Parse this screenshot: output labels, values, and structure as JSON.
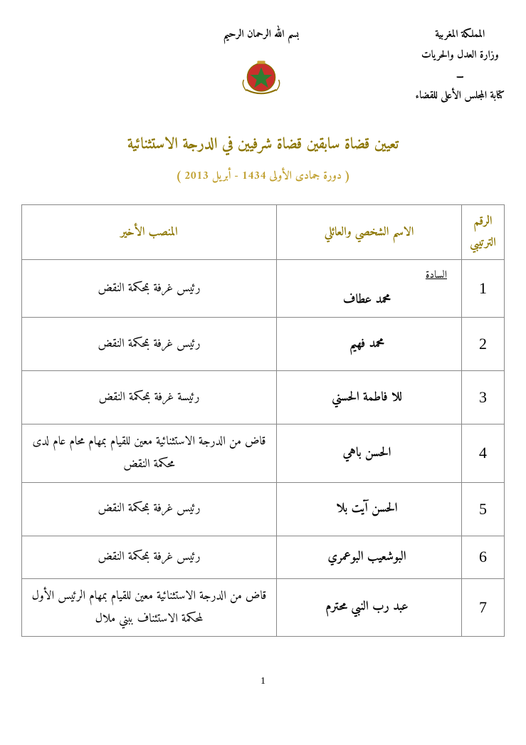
{
  "header": {
    "country": "المملكة المغربية",
    "ministry": "وزارة العدل والحريات",
    "separator": "ـــ",
    "office": "كتابة المجلس الأعلى للقضاء",
    "bismillah": "بسم الله الرحمان الرحيم"
  },
  "title": "تعيين قضاة سابقين قضاة شرفيين في الدرجة الاستثنائية",
  "subtitle": "( دورة جمادى الأولى 1434 - أبريل 2013 )",
  "columns": {
    "num": "الرقم الترتيبي",
    "name": "الاسم الشخصي والعائلي",
    "position": "المنصب الأخير"
  },
  "sada_label": "السادة",
  "rows": [
    {
      "num": "1",
      "name": "محمد عطاف",
      "position": "رئيس غرفة بمحكمة النقض",
      "has_sada": true
    },
    {
      "num": "2",
      "name": "محمد فهيم",
      "position": "رئيس غرفة بمحكمة النقض"
    },
    {
      "num": "3",
      "name": "للا فاطمة الحسني",
      "position": "رئيسة غرفة بمحكمة النقض"
    },
    {
      "num": "4",
      "name": "الحسن باهي",
      "position": "قاض من الدرجة الاستثنائية معين للقيام بمهام محام عام لدى محكمة النقض"
    },
    {
      "num": "5",
      "name": "الحسن آيت بلا",
      "position": "رئيس غرفة بمحكمة النقض"
    },
    {
      "num": "6",
      "name": "البوشعيب البوعمري",
      "position": "رئيس غرفة بمحكمة النقض",
      "short": true
    },
    {
      "num": "7",
      "name": "عبد رب النبي محترم",
      "position": "قاض من الدرجة الاستثنائية معين للقيام بمهام الرئيس الأول لمحكمة الاستئناف ببني ملال"
    }
  ],
  "page_number": "1",
  "colors": {
    "title_color": "#8b7500",
    "subtitle_color": "#c0a030",
    "border_color": "#888888",
    "text_color": "#000000",
    "background": "#ffffff"
  }
}
